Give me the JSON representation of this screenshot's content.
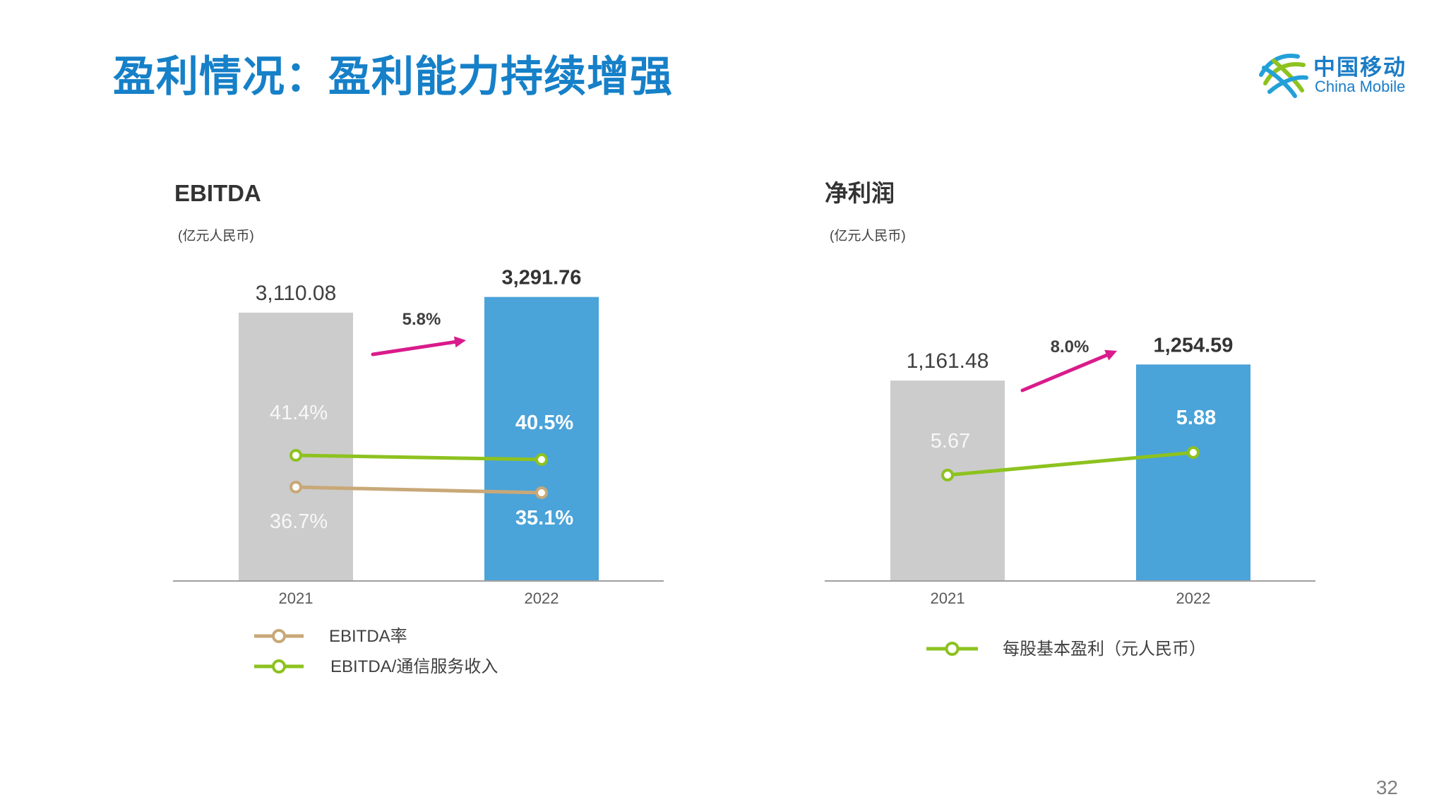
{
  "page": {
    "title": "盈利情况：盈利能力持续增强",
    "page_number": "32",
    "logo": {
      "cn": "中国移动",
      "en": "China Mobile",
      "colors": [
        "#22a0d8",
        "#8dc21f"
      ]
    }
  },
  "colors": {
    "title": "#1680c8",
    "bar_2021": "#cccccc",
    "bar_2022": "#4aa3d9",
    "ebitda_rate_line": "#c8a878",
    "ebitda_service_line": "#8dc21f",
    "eps_line": "#8dc21f",
    "growth_arrow": "#d91b8c",
    "axis": "#a0a0a0"
  },
  "chart_data": [
    {
      "type": "bar",
      "title": "EBITDA",
      "subtitle": "(亿元人民币)",
      "categories": [
        "2021",
        "2022"
      ],
      "values": [
        3110.08,
        3291.76
      ],
      "value_labels": [
        "3,110.08",
        "3,291.76"
      ],
      "growth_label": "5.8%",
      "ylim": [
        0,
        3600
      ],
      "overlay_lines": [
        {
          "name": "EBITDA率",
          "values": [
            36.7,
            35.1
          ],
          "value_labels": [
            "36.7%",
            "35.1%"
          ],
          "color": "#c8a878"
        },
        {
          "name": "EBITDA/通信服务收入",
          "values": [
            41.4,
            40.5
          ],
          "value_labels": [
            "41.4%",
            "40.5%"
          ],
          "color": "#8dc21f"
        }
      ],
      "legend_position": "bottom-left"
    },
    {
      "type": "bar",
      "title": "净利润",
      "subtitle": "(亿元人民币)",
      "categories": [
        "2021",
        "2022"
      ],
      "values": [
        1161.48,
        1254.59
      ],
      "value_labels": [
        "1,161.48",
        "1,254.59"
      ],
      "growth_label": "8.0%",
      "ylim": [
        0,
        1800
      ],
      "overlay_lines": [
        {
          "name": "每股基本盈利（元人民币）",
          "values": [
            5.67,
            5.88
          ],
          "value_labels": [
            "5.67",
            "5.88"
          ],
          "color": "#8dc21f"
        }
      ],
      "legend_position": "bottom"
    }
  ]
}
